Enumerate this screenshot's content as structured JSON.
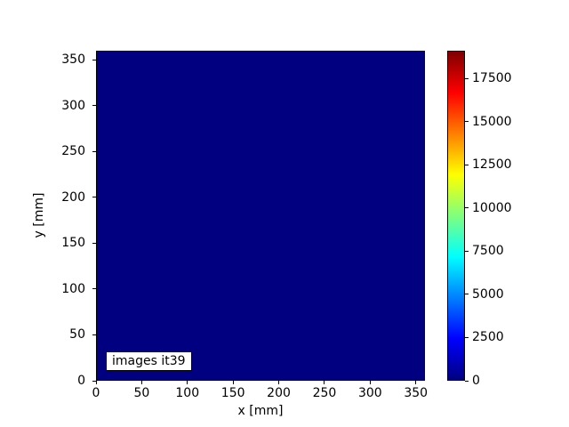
{
  "chart_data": {
    "type": "heatmap",
    "title": "",
    "xlabel": "x [mm]",
    "ylabel": "y [mm]",
    "x_range": [
      0,
      360
    ],
    "y_range": [
      0,
      360
    ],
    "x_ticks": [
      0,
      50,
      100,
      150,
      200,
      250,
      300,
      350
    ],
    "y_ticks": [
      0,
      50,
      100,
      150,
      200,
      250,
      300,
      350
    ],
    "colormap": "jet",
    "colorbar_ticks": [
      0,
      2500,
      5000,
      7500,
      10000,
      12500,
      15000,
      17500
    ],
    "value_range": [
      0,
      19100
    ],
    "uniform_value": 0,
    "annotation": "images it39",
    "grid": false,
    "legend": false,
    "colors": {
      "background": "#ffffff",
      "heatmap_fill": "#000080",
      "jet_stop_colors": [
        "#000080",
        "#0000ff",
        "#00ffff",
        "#ffff00",
        "#ff0000",
        "#800000"
      ],
      "jet_stop_fractions": [
        0,
        0.125,
        0.375,
        0.625,
        0.875,
        1
      ],
      "text": "#000000"
    }
  }
}
